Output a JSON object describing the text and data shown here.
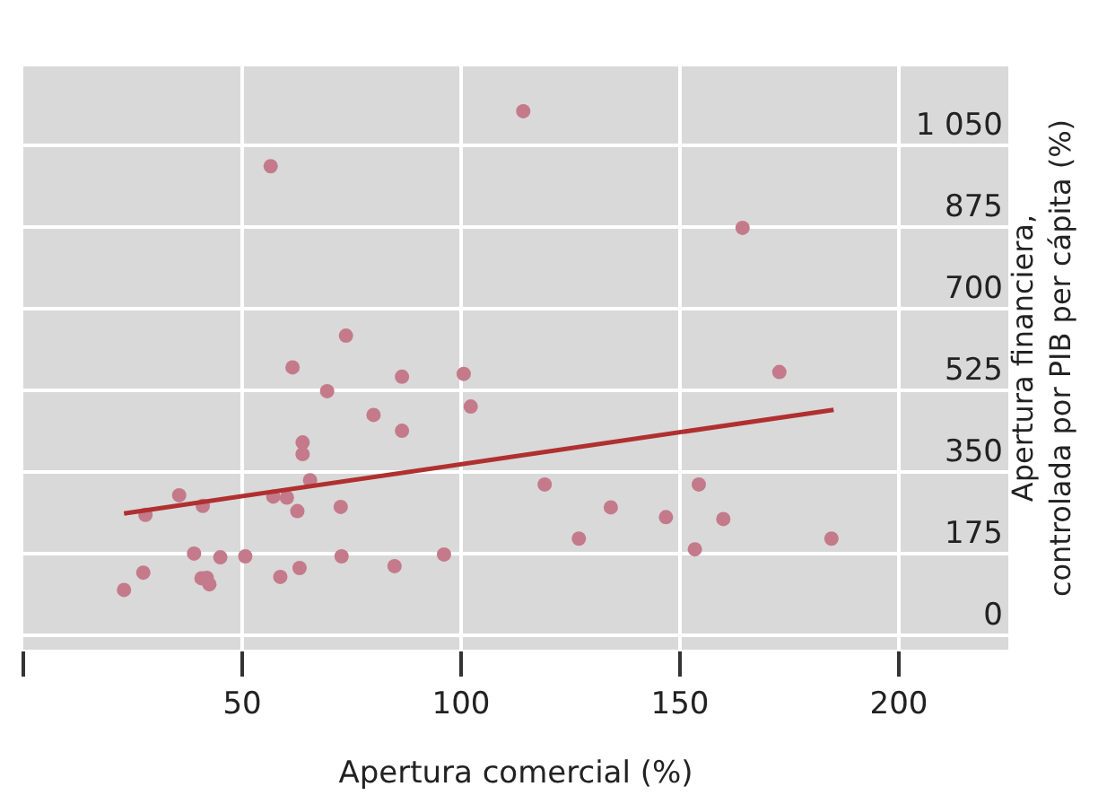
{
  "chart_data": {
    "type": "scatter",
    "xlabel": "Apertura comercial (%)",
    "ylabel": "Apertura financiera,\ncontrolada por PIB per cápita (%)",
    "xlim": [
      0,
      225
    ],
    "xticks": [
      {
        "value": 0,
        "label": null
      },
      50,
      100,
      150,
      200
    ],
    "ylim": [
      -30,
      1220
    ],
    "yticks": [
      0,
      175,
      350,
      525,
      700,
      875,
      {
        "value": 1050,
        "label": "1 050"
      }
    ],
    "grid": true,
    "marker": "circle",
    "series": [
      {
        "color": "#c47a8a",
        "x": [
          114.2,
          56.5,
          73.7,
          61.5,
          86.5,
          100.6,
          69.4,
          164.3,
          172.7,
          102.2,
          80.0,
          86.5,
          63.8,
          63.8,
          65.5,
          35.6,
          57.1,
          60.2,
          41.0,
          62.6,
          72.5,
          27.9,
          39.0,
          45.0,
          50.7,
          72.7,
          96.1,
          84.8,
          63.1,
          27.4,
          58.7,
          40.7,
          41.9,
          42.5,
          23.0,
          119.1,
          154.3,
          134.2,
          146.8,
          159.9,
          126.9,
          184.6,
          153.4
        ],
        "values": [
          1124,
          1006,
          643,
          575,
          555,
          561,
          524,
          874,
          565,
          491,
          473,
          439,
          414,
          389,
          333,
          301,
          298,
          296,
          278,
          267,
          276,
          259,
          176,
          168,
          170,
          170,
          174,
          149,
          145,
          135,
          126,
          123,
          124,
          110,
          98,
          324,
          324,
          275,
          254,
          250,
          208,
          208,
          185
        ]
      },
      {
        "type": "line",
        "color": "#b03030",
        "marker": "none",
        "x": [
          23.0,
          185.1
        ],
        "values": [
          262,
          484
        ]
      }
    ]
  }
}
